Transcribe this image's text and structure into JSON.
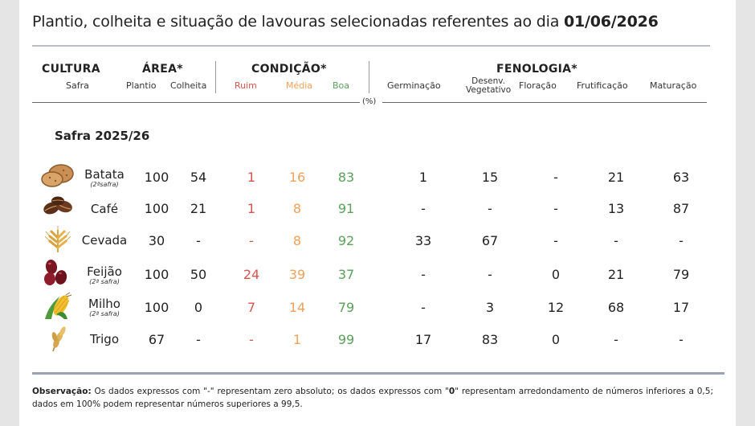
{
  "title": {
    "text": "Plantio, colheita e situação de lavouras selecionadas referentes ao dia ",
    "date": "01/06/2026"
  },
  "headers": {
    "cultura": "CULTURA",
    "safra": "Safra",
    "area": "ÁREA*",
    "plantio": "Plantio",
    "colheita": "Colheita",
    "condicao": "CONDIÇÃO*",
    "ruim": "Ruim",
    "media": "Média",
    "boa": "Boa",
    "fenologia": "FENOLOGIA*",
    "germinacao": "Germinação",
    "desenv_line1": "Desenv.",
    "desenv_line2": "Vegetativo",
    "floracao": "Floração",
    "frutificacao": "Frutificação",
    "maturacao": "Maturação",
    "percent": "(%)"
  },
  "section_label": "Safra 2025/26",
  "colors": {
    "ruim": "#d9534f",
    "media": "#f0a05a",
    "boa": "#5aa05a"
  },
  "rows": [
    {
      "name": "Batata",
      "sub": "(2ªsafra)",
      "icon": "potato-icon",
      "plantio": "100",
      "colheita": "54",
      "ruim": "1",
      "media": "16",
      "boa": "83",
      "germinacao": "1",
      "desenv": "15",
      "floracao": "-",
      "frutificacao": "21",
      "maturacao": "63"
    },
    {
      "name": "Café",
      "sub": "",
      "icon": "coffee-bean-icon",
      "plantio": "100",
      "colheita": "21",
      "ruim": "1",
      "media": "8",
      "boa": "91",
      "germinacao": "-",
      "desenv": "-",
      "floracao": "-",
      "frutificacao": "13",
      "maturacao": "87"
    },
    {
      "name": "Cevada",
      "sub": "",
      "icon": "barley-icon",
      "plantio": "30",
      "colheita": "-",
      "ruim": "-",
      "media": "8",
      "boa": "92",
      "germinacao": "33",
      "desenv": "67",
      "floracao": "-",
      "frutificacao": "-",
      "maturacao": "-"
    },
    {
      "name": "Feijão",
      "sub": "(2ª safra)",
      "icon": "bean-icon",
      "plantio": "100",
      "colheita": "50",
      "ruim": "24",
      "media": "39",
      "boa": "37",
      "germinacao": "-",
      "desenv": "-",
      "floracao": "0",
      "frutificacao": "21",
      "maturacao": "79"
    },
    {
      "name": "Milho",
      "sub": "(2ª safra)",
      "icon": "corn-icon",
      "plantio": "100",
      "colheita": "0",
      "ruim": "7",
      "media": "14",
      "boa": "79",
      "germinacao": "-",
      "desenv": "3",
      "floracao": "12",
      "frutificacao": "68",
      "maturacao": "17"
    },
    {
      "name": "Trigo",
      "sub": "",
      "icon": "wheat-icon",
      "plantio": "67",
      "colheita": "-",
      "ruim": "-",
      "media": "1",
      "boa": "99",
      "germinacao": "17",
      "desenv": "83",
      "floracao": "0",
      "frutificacao": "-",
      "maturacao": "-"
    }
  ],
  "observation": {
    "label": "Observação:",
    "text1": " Os dados expressos com \"-\" representam zero absoluto; os dados expressos com \"",
    "zero": "0",
    "text2": "\" representam arredondamento de números inferiores a 0,5; dados em 100% podem representar números superiores a 99,5."
  }
}
